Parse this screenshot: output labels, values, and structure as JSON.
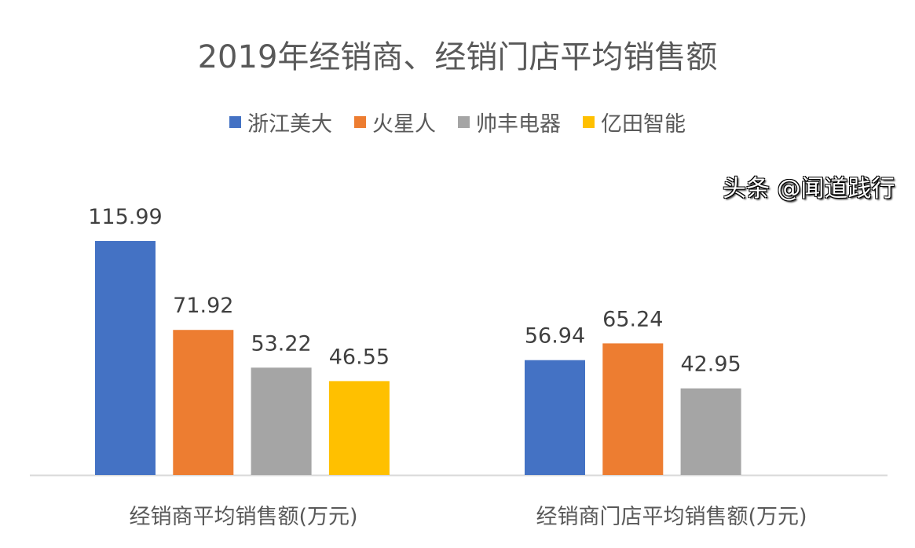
{
  "chart_data": {
    "type": "bar",
    "title": "2019年经销商、经销门店平均销售额",
    "categories": [
      "经销商平均销售额(万元)",
      "经销商门店平均销售额(万元)"
    ],
    "series": [
      {
        "name": "浙江美大",
        "color": "#4472C4",
        "values": [
          115.99,
          56.94
        ]
      },
      {
        "name": "火星人",
        "color": "#ED7D31",
        "values": [
          71.92,
          65.24
        ]
      },
      {
        "name": "帅丰电器",
        "color": "#A5A5A5",
        "values": [
          53.22,
          42.95
        ]
      },
      {
        "name": "亿田智能",
        "color": "#FFC000",
        "values": [
          46.55,
          null
        ]
      }
    ],
    "legend_position": "top",
    "grid": false,
    "ylim": [
      0,
      120
    ]
  },
  "watermark": "头条 @闻道践行"
}
